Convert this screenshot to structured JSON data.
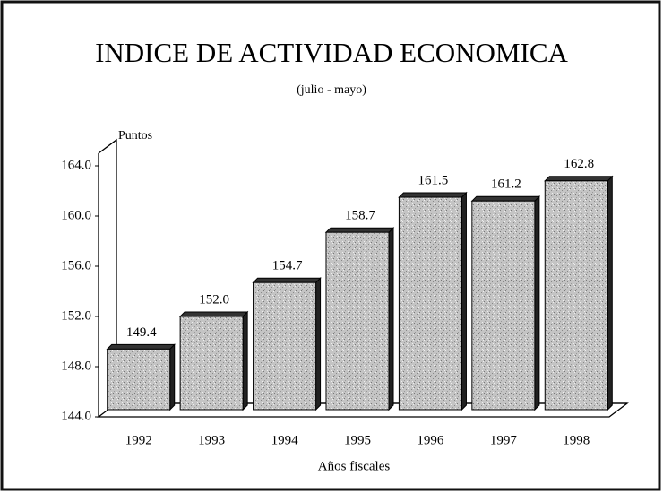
{
  "chart_data": {
    "type": "bar3d",
    "title": "INDICE DE ACTIVIDAD ECONOMICA",
    "subtitle": "(julio - mayo)",
    "y_label": "Puntos",
    "x_label": "Años fiscales",
    "categories": [
      "1992",
      "1993",
      "1994",
      "1995",
      "1996",
      "1997",
      "1998"
    ],
    "values": [
      149.4,
      152.0,
      154.7,
      158.7,
      161.5,
      161.2,
      162.8
    ],
    "value_labels": [
      "149.4",
      "152.0",
      "154.7",
      "158.7",
      "161.5",
      "161.2",
      "162.8"
    ],
    "color": "#b5b5b5",
    "ylim": [
      144,
      165
    ],
    "yticks": [
      {
        "value": 144,
        "label": "144.0"
      },
      {
        "value": 148,
        "label": "148.0"
      },
      {
        "value": 152,
        "label": "152.0"
      },
      {
        "value": 156,
        "label": "156.0"
      },
      {
        "value": 160,
        "label": "160.0"
      },
      {
        "value": 164,
        "label": "164.0"
      }
    ],
    "grid": false
  }
}
